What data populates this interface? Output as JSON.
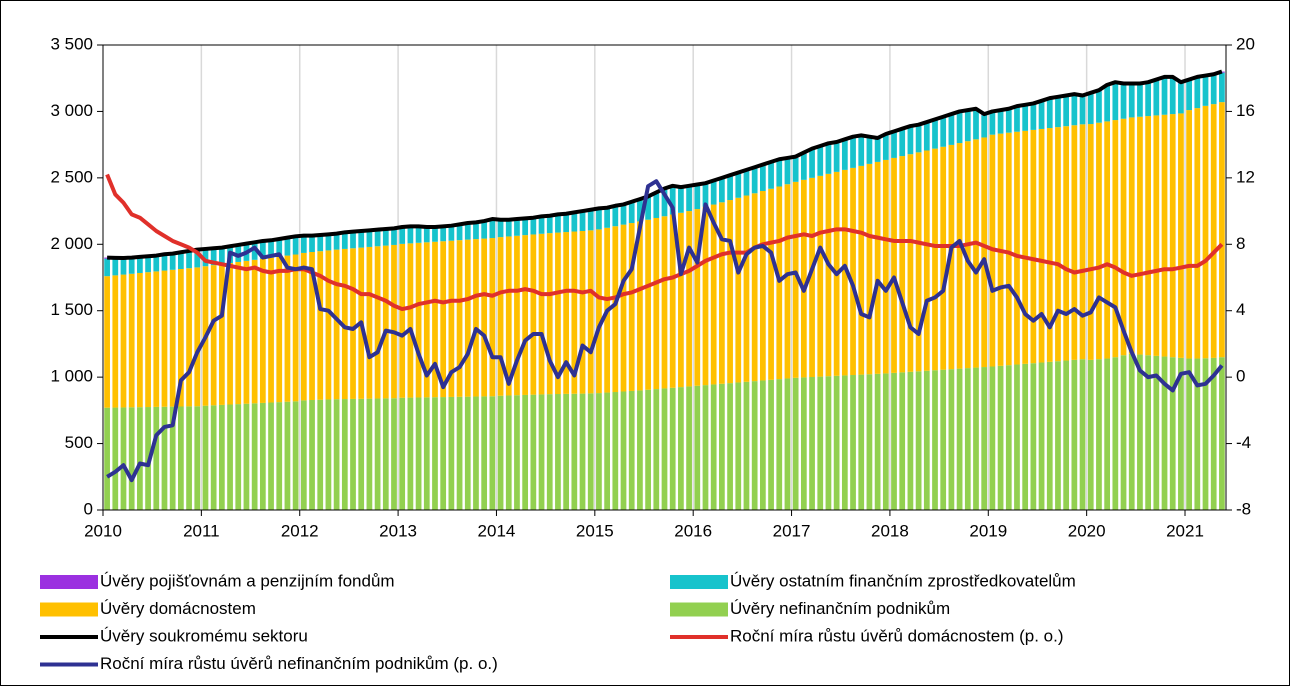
{
  "chart_data": {
    "type": "bar",
    "categories": [
      "2010",
      null,
      null,
      null,
      null,
      null,
      null,
      null,
      null,
      null,
      null,
      null,
      "2011",
      null,
      null,
      null,
      null,
      null,
      null,
      null,
      null,
      null,
      null,
      null,
      "2012",
      null,
      null,
      null,
      null,
      null,
      null,
      null,
      null,
      null,
      null,
      null,
      "2013",
      null,
      null,
      null,
      null,
      null,
      null,
      null,
      null,
      null,
      null,
      null,
      "2014",
      null,
      null,
      null,
      null,
      null,
      null,
      null,
      null,
      null,
      null,
      null,
      "2015",
      null,
      null,
      null,
      null,
      null,
      null,
      null,
      null,
      null,
      null,
      null,
      "2016",
      null,
      null,
      null,
      null,
      null,
      null,
      null,
      null,
      null,
      null,
      null,
      "2017",
      null,
      null,
      null,
      null,
      null,
      null,
      null,
      null,
      null,
      null,
      null,
      "2018",
      null,
      null,
      null,
      null,
      null,
      null,
      null,
      null,
      null,
      null,
      null,
      "2019",
      null,
      null,
      null,
      null,
      null,
      null,
      null,
      null,
      null,
      null,
      null,
      "2020",
      null,
      null,
      null,
      null,
      null,
      null,
      null,
      null,
      null,
      null,
      null,
      "2021",
      null,
      null,
      null,
      null
    ],
    "series": [
      {
        "name": "Úvěry pojišťovnám a penzijním fondům",
        "type": "bar",
        "color": "#9b30e0",
        "values": [
          8,
          8,
          8,
          8,
          8,
          8,
          8,
          8,
          8,
          8,
          8,
          8,
          8,
          8,
          8,
          8,
          8,
          8,
          8,
          8,
          8,
          8,
          8,
          8,
          8,
          8,
          8,
          8,
          8,
          8,
          8,
          8,
          8,
          8,
          8,
          8,
          8,
          8,
          8,
          8,
          8,
          8,
          8,
          8,
          8,
          8,
          8,
          8,
          8,
          8,
          8,
          8,
          8,
          8,
          8,
          8,
          8,
          8,
          8,
          8,
          8,
          8,
          8,
          8,
          8,
          8,
          8,
          8,
          8,
          8,
          8,
          8,
          8,
          8,
          8,
          8,
          8,
          8,
          8,
          8,
          8,
          8,
          8,
          8,
          8,
          8,
          8,
          8,
          8,
          8,
          8,
          8,
          8,
          8,
          8,
          8,
          8,
          8,
          8,
          8,
          8,
          8,
          8,
          8,
          8,
          8,
          8,
          8,
          8,
          8,
          8,
          8,
          8,
          8,
          8,
          8,
          8,
          8,
          8,
          8,
          8,
          8,
          8,
          8,
          8,
          8,
          8,
          8,
          8,
          8,
          8,
          8,
          8,
          8,
          8,
          8,
          8
        ]
      },
      {
        "name": "Úvěry ostatním finančním zprostředkovatelům",
        "type": "bar",
        "color": "#17c3cc",
        "values": [
          132,
          124,
          117,
          114,
          113,
          112,
          111,
          115,
          114,
          118,
          122,
          126,
          122,
          119,
          116,
          118,
          120,
          122,
          124,
          126,
          123,
          125,
          127,
          129,
          122,
          115,
          114,
          113,
          112,
          117,
          117,
          117,
          117,
          117,
          117,
          117,
          119,
          120,
          116,
          107,
          103,
          104,
          105,
          111,
          117,
          118,
          124,
          135,
          123,
          118,
          118,
          118,
          118,
          123,
          123,
          129,
          130,
          136,
          142,
          147,
          150,
          143,
          146,
          144,
          152,
          160,
          167,
          184,
          201,
          208,
          185,
          182,
          177,
          170,
          173,
          176,
          179,
          182,
          185,
          188,
          191,
          194,
          197,
          190,
          182,
          197,
          212,
          217,
          222,
          217,
          222,
          227,
          222,
          197,
          172,
          187,
          192,
          198,
          204,
          200,
          206,
          212,
          218,
          224,
          230,
          226,
          222,
          168,
          167,
          169,
          172,
          185,
          188,
          191,
          204,
          217,
          220,
          223,
          226,
          209,
          227,
          237,
          267,
          277,
          257,
          247,
          242,
          247,
          262,
          277,
          272,
          227,
          222,
          227,
          220,
          217,
          222
        ]
      },
      {
        "name": "Úvěry domácnostem",
        "type": "bar",
        "color": "#ffc000",
        "values": [
          990,
          995,
          1000,
          1005,
          1010,
          1015,
          1020,
          1025,
          1030,
          1035,
          1040,
          1045,
          1050,
          1055,
          1060,
          1065,
          1070,
          1075,
          1080,
          1085,
          1090,
          1095,
          1100,
          1105,
          1110,
          1114,
          1118,
          1122,
          1126,
          1130,
          1134,
          1138,
          1142,
          1146,
          1150,
          1154,
          1158,
          1161,
          1164,
          1167,
          1170,
          1173,
          1176,
          1179,
          1182,
          1185,
          1188,
          1191,
          1194,
          1197,
          1200,
          1203,
          1206,
          1209,
          1212,
          1215,
          1218,
          1221,
          1224,
          1227,
          1232,
          1240,
          1248,
          1256,
          1264,
          1272,
          1280,
          1288,
          1296,
          1304,
          1312,
          1320,
          1330,
          1342,
          1354,
          1366,
          1378,
          1390,
          1402,
          1414,
          1426,
          1438,
          1450,
          1462,
          1475,
          1487,
          1499,
          1511,
          1523,
          1535,
          1547,
          1559,
          1571,
          1583,
          1595,
          1607,
          1618,
          1628,
          1638,
          1648,
          1658,
          1668,
          1678,
          1688,
          1698,
          1708,
          1718,
          1728,
          1745,
          1748,
          1750,
          1752,
          1754,
          1756,
          1758,
          1760,
          1762,
          1764,
          1766,
          1768,
          1775,
          1780,
          1785,
          1785,
          1780,
          1780,
          1790,
          1800,
          1810,
          1820,
          1830,
          1840,
          1870,
          1885,
          1900,
          1910,
          1920
        ]
      },
      {
        "name": "Úvěry nefinančním podnikům",
        "type": "bar",
        "color": "#92d050",
        "values": [
          770,
          771,
          772,
          773,
          774,
          775,
          776,
          777,
          778,
          779,
          780,
          781,
          785,
          788,
          791,
          794,
          797,
          800,
          803,
          806,
          809,
          812,
          815,
          818,
          825,
          828,
          830,
          832,
          834,
          835,
          836,
          837,
          838,
          839,
          840,
          841,
          845,
          846,
          847,
          848,
          849,
          850,
          851,
          852,
          853,
          854,
          855,
          856,
          860,
          862,
          864,
          866,
          868,
          870,
          872,
          873,
          874,
          875,
          876,
          878,
          880,
          884,
          888,
          892,
          896,
          900,
          905,
          910,
          915,
          920,
          925,
          930,
          935,
          940,
          945,
          950,
          955,
          960,
          965,
          970,
          975,
          980,
          985,
          990,
          995,
          998,
          1001,
          1004,
          1007,
          1010,
          1013,
          1016,
          1019,
          1022,
          1025,
          1028,
          1032,
          1036,
          1040,
          1044,
          1048,
          1052,
          1056,
          1060,
          1064,
          1068,
          1072,
          1076,
          1080,
          1085,
          1090,
          1095,
          1100,
          1105,
          1110,
          1115,
          1120,
          1125,
          1130,
          1135,
          1130,
          1135,
          1140,
          1150,
          1165,
          1175,
          1170,
          1165,
          1160,
          1155,
          1150,
          1145,
          1140,
          1140,
          1142,
          1145,
          1150
        ]
      },
      {
        "name": "Úvěry soukromému sektoru",
        "type": "line",
        "color": "#000000",
        "values": [
          1900,
          1898,
          1897,
          1900,
          1905,
          1910,
          1915,
          1925,
          1930,
          1940,
          1950,
          1960,
          1965,
          1970,
          1975,
          1985,
          1995,
          2005,
          2015,
          2025,
          2030,
          2040,
          2050,
          2060,
          2065,
          2065,
          2070,
          2075,
          2080,
          2090,
          2095,
          2100,
          2105,
          2110,
          2115,
          2120,
          2130,
          2135,
          2135,
          2130,
          2130,
          2135,
          2140,
          2150,
          2160,
          2165,
          2175,
          2190,
          2185,
          2185,
          2190,
          2195,
          2200,
          2210,
          2215,
          2225,
          2230,
          2240,
          2250,
          2260,
          2270,
          2275,
          2290,
          2300,
          2320,
          2340,
          2360,
          2390,
          2420,
          2440,
          2430,
          2440,
          2450,
          2460,
          2480,
          2500,
          2520,
          2540,
          2560,
          2580,
          2600,
          2620,
          2640,
          2650,
          2660,
          2690,
          2720,
          2740,
          2760,
          2770,
          2790,
          2810,
          2820,
          2810,
          2800,
          2830,
          2850,
          2870,
          2890,
          2900,
          2920,
          2940,
          2960,
          2980,
          3000,
          3010,
          3020,
          2980,
          3000,
          3010,
          3020,
          3040,
          3050,
          3060,
          3080,
          3100,
          3110,
          3120,
          3130,
          3120,
          3140,
          3160,
          3200,
          3220,
          3210,
          3210,
          3210,
          3220,
          3240,
          3260,
          3260,
          3220,
          3240,
          3260,
          3270,
          3280,
          3300
        ]
      },
      {
        "name": "Roční míra růstu úvěrů domácnostem (p. o.)",
        "type": "line",
        "axis": "y2",
        "color": "#e0302a",
        "values": [
          12.2,
          11,
          10.5,
          9.8,
          9.6,
          9.2,
          8.8,
          8.5,
          8.2,
          8,
          7.8,
          7.5,
          7,
          6.9,
          6.8,
          6.7,
          6.6,
          6.5,
          6.6,
          6.4,
          6.3,
          6.4,
          6.4,
          6.5,
          6.5,
          6.3,
          6.1,
          5.8,
          5.6,
          5.5,
          5.3,
          5,
          5,
          4.8,
          4.6,
          4.3,
          4.1,
          4.2,
          4.4,
          4.5,
          4.6,
          4.5,
          4.6,
          4.6,
          4.7,
          4.9,
          5,
          4.9,
          5.1,
          5.2,
          5.2,
          5.3,
          5.2,
          5,
          5,
          5.1,
          5.2,
          5.2,
          5.1,
          5.2,
          4.8,
          4.7,
          4.8,
          5,
          5.1,
          5.3,
          5.5,
          5.7,
          5.9,
          6,
          6.2,
          6.4,
          6.7,
          7,
          7.2,
          7.4,
          7.5,
          7.5,
          7.5,
          7.8,
          8,
          8.1,
          8.2,
          8.4,
          8.5,
          8.6,
          8.5,
          8.7,
          8.8,
          8.9,
          8.9,
          8.8,
          8.7,
          8.5,
          8.4,
          8.3,
          8.2,
          8.2,
          8.2,
          8.1,
          8,
          7.9,
          7.9,
          7.9,
          7.9,
          8,
          8.1,
          7.9,
          7.7,
          7.6,
          7.5,
          7.3,
          7.2,
          7.1,
          7,
          6.9,
          6.8,
          6.5,
          6.3,
          6.4,
          6.5,
          6.6,
          6.8,
          6.6,
          6.3,
          6.1,
          6.2,
          6.3,
          6.4,
          6.5,
          6.5,
          6.6,
          6.7,
          6.7,
          7,
          7.5,
          8
        ]
      },
      {
        "name": "Roční míra růstu úvěrů nefinančním podnikům (p. o.)",
        "type": "line",
        "axis": "y2",
        "color": "#2e3192",
        "values": [
          -6,
          -5.7,
          -5.3,
          -6.2,
          -5.2,
          -5.3,
          -3.5,
          -3,
          -2.9,
          -0.2,
          0.3,
          1.5,
          2.4,
          3.4,
          3.7,
          7.5,
          7.3,
          7.5,
          7.8,
          7.2,
          7.3,
          7.4,
          6.6,
          6.5,
          6.6,
          6.5,
          4.1,
          4,
          3.5,
          3,
          2.9,
          3.3,
          1.2,
          1.5,
          2.8,
          2.7,
          2.5,
          2.9,
          1.4,
          0.1,
          0.8,
          -0.6,
          0.3,
          0.6,
          1.4,
          2.9,
          2.5,
          1.2,
          1.2,
          -0.4,
          1,
          2.2,
          2.6,
          2.6,
          1,
          0,
          0.9,
          0.1,
          1.9,
          1.5,
          3,
          4,
          4.4,
          5.8,
          6.5,
          9,
          11.5,
          11.8,
          11,
          10.2,
          6.2,
          7.8,
          6.9,
          10.4,
          9.3,
          8.3,
          8.2,
          6.3,
          7.4,
          7.8,
          7.9,
          7.5,
          5.8,
          6.2,
          6.3,
          5.2,
          6.5,
          7.8,
          6.8,
          6.2,
          6.7,
          5.5,
          3.8,
          3.6,
          5.8,
          5.2,
          6,
          4.5,
          3,
          2.6,
          4.6,
          4.8,
          5.2,
          7.8,
          8.2,
          7,
          6.3,
          7.1,
          5.2,
          5.4,
          5.5,
          4.8,
          3.8,
          3.4,
          3.8,
          3,
          4,
          3.8,
          4.1,
          3.7,
          3.9,
          4.8,
          4.5,
          4.2,
          2.8,
          1.5,
          0.4,
          0,
          0.1,
          -0.4,
          -0.8,
          0.2,
          0.3,
          -0.5,
          -0.4,
          0.1,
          0.7
        ]
      }
    ],
    "ylim": [
      0,
      3500
    ],
    "yticks": [
      0,
      500,
      {
        "value": 1000,
        "label": "1 000"
      },
      {
        "value": 1500,
        "label": "1 500"
      },
      {
        "value": 2000,
        "label": "2 000"
      },
      {
        "value": 2500,
        "label": "2 500"
      },
      {
        "value": 3000,
        "label": "3 000"
      },
      {
        "value": 3500,
        "label": "3 500"
      }
    ],
    "y2lim": [
      -8,
      20
    ],
    "y2ticks": [
      -8,
      -4,
      0,
      4,
      8,
      12,
      16,
      20
    ]
  }
}
